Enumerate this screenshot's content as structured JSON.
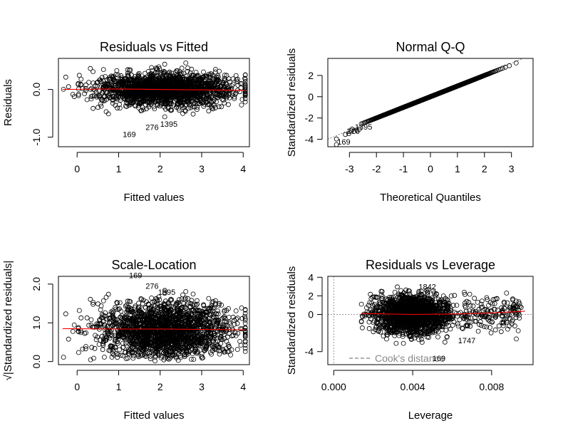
{
  "chart_data": [
    {
      "type": "scatter",
      "title": "Residuals vs Fitted",
      "xlabel": "Fitted values",
      "ylabel": "Residuals",
      "xlim": [
        -0.45,
        4.15
      ],
      "ylim": [
        -1.2,
        0.65
      ],
      "xticks": [
        0,
        1,
        2,
        3,
        4
      ],
      "xtick_labels": [
        "0",
        "1",
        "2",
        "3",
        "4"
      ],
      "yticks": [
        -1.0,
        0.0
      ],
      "ytick_labels": [
        "-1.0",
        "0.0"
      ],
      "points": {
        "n": 2000,
        "x_mean": 2.1,
        "x_sd": 0.8,
        "x_range": [
          -0.35,
          4.05
        ],
        "y_sd": 0.17
      },
      "smooth_line": {
        "color": "#ff0000",
        "x": [
          -0.35,
          1.0,
          2.0,
          3.0,
          4.05
        ],
        "y": [
          0.0,
          0.01,
          0.0,
          -0.01,
          -0.02
        ]
      },
      "annotations": [
        {
          "text": "169",
          "x": 1.1,
          "y": -1.0
        },
        {
          "text": "276",
          "x": 1.65,
          "y": -0.85
        },
        {
          "text": "1395",
          "x": 2.0,
          "y": -0.78
        }
      ],
      "grid": false
    },
    {
      "type": "scatter",
      "title": "Normal Q-Q",
      "xlabel": "Theoretical Quantiles",
      "ylabel": "Standardized residuals",
      "xlim": [
        -3.8,
        3.8
      ],
      "ylim": [
        -4.7,
        3.6
      ],
      "xticks": [
        -3,
        -2,
        -1,
        0,
        1,
        2,
        3
      ],
      "xtick_labels": [
        "-3",
        "-2",
        "-1",
        "0",
        "1",
        "2",
        "3"
      ],
      "yticks": [
        -4,
        -2,
        0,
        2
      ],
      "ytick_labels": [
        "-4",
        "-2",
        "0",
        "2"
      ],
      "reference_line": {
        "style": "dotted",
        "color": "#808080",
        "slope": 1.05,
        "intercept": 0
      },
      "points": {
        "n": 2000
      },
      "annotations": [
        {
          "text": "169",
          "x": -3.45,
          "y": -4.5
        },
        {
          "text": "276",
          "x": -3.1,
          "y": -3.5
        },
        {
          "text": "1395",
          "x": -2.8,
          "y": -3.1
        }
      ],
      "grid": false
    },
    {
      "type": "scatter",
      "title": "Scale-Location",
      "xlabel": "Fitted values",
      "ylabel": "√|Standardized residuals|",
      "xlim": [
        -0.45,
        4.15
      ],
      "ylim": [
        -0.08,
        2.2
      ],
      "xticks": [
        0,
        1,
        2,
        3,
        4
      ],
      "xtick_labels": [
        "0",
        "1",
        "2",
        "3",
        "4"
      ],
      "yticks": [
        0.0,
        1.0,
        2.0
      ],
      "ytick_labels": [
        "0.0",
        "1.0",
        "2.0"
      ],
      "points": {
        "n": 2000,
        "x_mean": 2.1,
        "x_sd": 0.8,
        "x_range": [
          -0.35,
          4.05
        ]
      },
      "smooth_line": {
        "color": "#ff0000",
        "x": [
          -0.35,
          1.0,
          2.0,
          3.0,
          4.05
        ],
        "y": [
          0.85,
          0.84,
          0.84,
          0.83,
          0.82
        ]
      },
      "annotations": [
        {
          "text": "169",
          "x": 1.25,
          "y": 2.15
        },
        {
          "text": "276",
          "x": 1.65,
          "y": 1.88
        },
        {
          "text": "1395",
          "x": 1.95,
          "y": 1.72
        }
      ],
      "grid": false
    },
    {
      "type": "scatter",
      "title": "Residuals vs Leverage",
      "xlabel": "Leverage",
      "ylabel": "Standardized residuals",
      "xlim": [
        -0.0003,
        0.0101
      ],
      "ylim": [
        -5.4,
        4.1
      ],
      "xticks": [
        0.0,
        0.004,
        0.008
      ],
      "xtick_labels": [
        "0.000",
        "0.004",
        "0.008"
      ],
      "yticks": [
        -4,
        0,
        2,
        4
      ],
      "ytick_labels": [
        "-4",
        "0",
        "2",
        "4"
      ],
      "points": {
        "n": 2000,
        "lev_min": 0.0014,
        "lev_mode": 0.004,
        "lev_max": 0.0097
      },
      "smooth_line": {
        "color": "#ff0000",
        "x": [
          0.0014,
          0.004,
          0.006,
          0.008,
          0.0097
        ],
        "y": [
          0.1,
          0.0,
          0.05,
          0.15,
          0.35
        ]
      },
      "legend": {
        "text": "Cook's distance",
        "style": "dashed",
        "color": "#808080",
        "placement": "bottom-left"
      },
      "annotations": [
        {
          "text": "169",
          "x": 0.005,
          "y": -5.0
        },
        {
          "text": "1747",
          "x": 0.0063,
          "y": -3.1
        },
        {
          "text": "1842",
          "x": 0.0043,
          "y": 2.7
        }
      ],
      "grid": false
    }
  ]
}
